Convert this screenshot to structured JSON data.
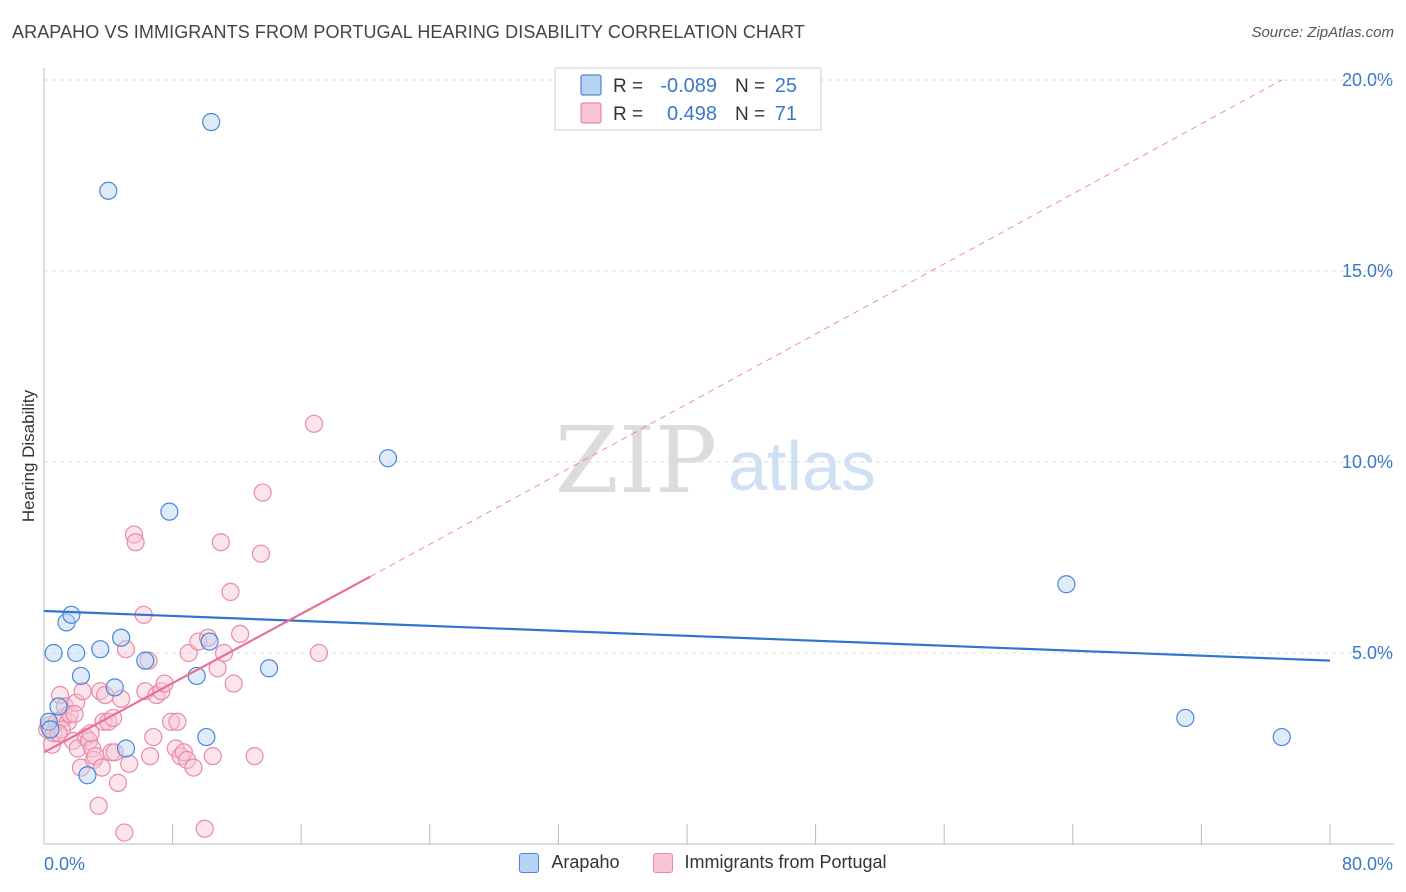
{
  "title": "ARAPAHO VS IMMIGRANTS FROM PORTUGAL HEARING DISABILITY CORRELATION CHART",
  "source": "Source: ZipAtlas.com",
  "watermark": {
    "zip": "ZIP",
    "atlas": "atlas"
  },
  "colors": {
    "blue": "#4a86d8",
    "blue_fill": "#b8d2f2",
    "blue_line": "#2f76cc",
    "pink": "#e98aa8",
    "pink_fill": "#f6c4d3",
    "pink_line": "#e8709a",
    "axis_text": "#3a78c9",
    "grid": "#dddddd"
  },
  "stats_legend": {
    "rows": [
      {
        "r_label": "R =",
        "r_value": "-0.089",
        "n_label": "N =",
        "n_value": "25"
      },
      {
        "r_label": "R =",
        "r_value": "0.498",
        "n_label": "N =",
        "n_value": "71"
      }
    ]
  },
  "chart_data": {
    "type": "scatter",
    "ylabel": "Hearing Disability",
    "xlim": [
      0,
      80
    ],
    "ylim": [
      0,
      20
    ],
    "y_ticks": [
      5,
      10,
      15,
      20
    ],
    "y_tick_labels": [
      "5.0%",
      "10.0%",
      "15.0%",
      "20.0%"
    ],
    "x_ticks": [
      0,
      8,
      16,
      24,
      32,
      40,
      48,
      56,
      64,
      72,
      80
    ],
    "x_tick_labels": {
      "min": "0.0%",
      "max": "80.0%"
    },
    "series": [
      {
        "name": "Arapaho",
        "r": -0.089,
        "n": 25,
        "trend": {
          "x0": 0,
          "y0": 6.1,
          "x1": 80,
          "y1": 4.8
        },
        "points": [
          [
            0.3,
            3.2
          ],
          [
            0.6,
            5.0
          ],
          [
            0.9,
            3.6
          ],
          [
            1.4,
            5.8
          ],
          [
            1.7,
            6.0
          ],
          [
            2.0,
            5.0
          ],
          [
            2.3,
            4.4
          ],
          [
            2.7,
            1.8
          ],
          [
            3.5,
            5.1
          ],
          [
            4.0,
            17.1
          ],
          [
            4.4,
            4.1
          ],
          [
            4.8,
            5.4
          ],
          [
            5.1,
            2.5
          ],
          [
            6.3,
            4.8
          ],
          [
            7.8,
            8.7
          ],
          [
            9.5,
            4.4
          ],
          [
            10.1,
            2.8
          ],
          [
            10.3,
            5.3
          ],
          [
            10.4,
            18.9
          ],
          [
            14.0,
            4.6
          ],
          [
            21.4,
            10.1
          ],
          [
            63.6,
            6.8
          ],
          [
            71.0,
            3.3
          ],
          [
            77.0,
            2.8
          ],
          [
            0.4,
            3.0
          ]
        ]
      },
      {
        "name": "Immigrants from Portugal",
        "r": 0.498,
        "n": 71,
        "trend": {
          "x0": 0,
          "y0": 2.4,
          "x1": 20.3,
          "y1": 7.0,
          "dash_to_x": 77,
          "dash_to_y": 20.0
        },
        "points": [
          [
            0.2,
            3.0
          ],
          [
            0.3,
            3.1
          ],
          [
            0.5,
            2.6
          ],
          [
            0.6,
            2.9
          ],
          [
            0.8,
            3.2
          ],
          [
            1.0,
            3.9
          ],
          [
            1.2,
            3.3
          ],
          [
            1.3,
            3.6
          ],
          [
            1.5,
            3.2
          ],
          [
            1.6,
            3.4
          ],
          [
            1.8,
            2.7
          ],
          [
            2.0,
            3.7
          ],
          [
            2.1,
            2.5
          ],
          [
            2.3,
            2.0
          ],
          [
            2.4,
            4.0
          ],
          [
            2.6,
            2.8
          ],
          [
            2.8,
            2.7
          ],
          [
            3.0,
            2.5
          ],
          [
            3.1,
            2.2
          ],
          [
            3.2,
            2.3
          ],
          [
            3.4,
            1.0
          ],
          [
            3.5,
            4.0
          ],
          [
            3.6,
            2.0
          ],
          [
            3.7,
            3.2
          ],
          [
            3.8,
            3.9
          ],
          [
            4.0,
            3.2
          ],
          [
            4.2,
            2.4
          ],
          [
            4.4,
            2.4
          ],
          [
            4.6,
            1.6
          ],
          [
            4.8,
            3.8
          ],
          [
            5.0,
            0.3
          ],
          [
            5.1,
            5.1
          ],
          [
            5.3,
            2.1
          ],
          [
            5.6,
            8.1
          ],
          [
            5.7,
            7.9
          ],
          [
            6.2,
            6.0
          ],
          [
            6.3,
            4.0
          ],
          [
            6.5,
            4.8
          ],
          [
            6.6,
            2.3
          ],
          [
            6.8,
            2.8
          ],
          [
            7.0,
            3.9
          ],
          [
            7.3,
            4.0
          ],
          [
            7.5,
            4.2
          ],
          [
            7.9,
            3.2
          ],
          [
            8.2,
            2.5
          ],
          [
            8.3,
            3.2
          ],
          [
            8.5,
            2.3
          ],
          [
            8.7,
            2.4
          ],
          [
            8.9,
            2.2
          ],
          [
            9.0,
            5.0
          ],
          [
            9.3,
            2.0
          ],
          [
            9.6,
            5.3
          ],
          [
            10.0,
            0.4
          ],
          [
            10.2,
            5.4
          ],
          [
            10.5,
            2.3
          ],
          [
            10.8,
            4.6
          ],
          [
            11.0,
            7.9
          ],
          [
            11.2,
            5.0
          ],
          [
            11.6,
            6.6
          ],
          [
            11.8,
            4.2
          ],
          [
            12.2,
            5.5
          ],
          [
            13.1,
            2.3
          ],
          [
            13.5,
            7.6
          ],
          [
            13.6,
            9.2
          ],
          [
            16.8,
            11.0
          ],
          [
            17.1,
            5.0
          ],
          [
            1.1,
            3.0
          ],
          [
            1.9,
            3.4
          ],
          [
            2.9,
            2.9
          ],
          [
            4.3,
            3.3
          ],
          [
            0.9,
            2.9
          ]
        ]
      }
    ]
  },
  "bottom_legend": [
    {
      "label": "Arapaho"
    },
    {
      "label": "Immigrants from Portugal"
    }
  ]
}
